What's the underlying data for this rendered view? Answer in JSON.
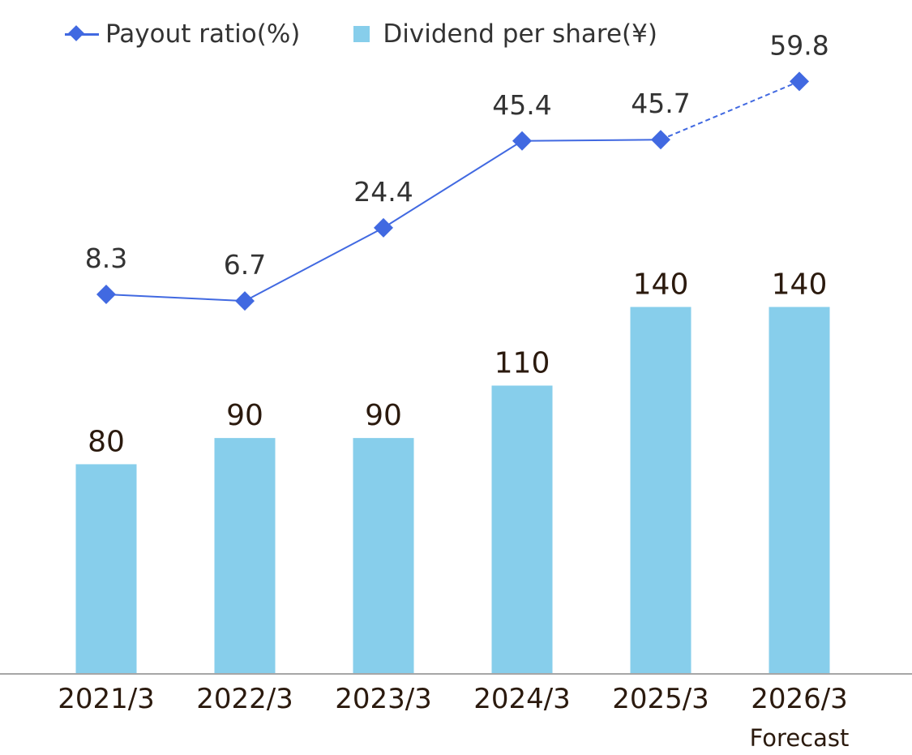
{
  "chart_data": {
    "type": "bar+line",
    "categories": [
      "2021/3",
      "2022/3",
      "2023/3",
      "2024/3",
      "2025/3",
      "2026/3"
    ],
    "category_sublabels": [
      "",
      "",
      "",
      "",
      "",
      "Forecast"
    ],
    "series": [
      {
        "name": "Dividend per share(¥)",
        "type": "bar",
        "values": [
          80,
          90,
          90,
          110,
          140,
          140
        ],
        "color": "#87ceeb",
        "label_color": "#2b1a0e"
      },
      {
        "name": "Payout ratio(%)",
        "type": "line",
        "values": [
          8.3,
          6.7,
          24.4,
          45.4,
          45.7,
          59.8
        ],
        "color": "#4169e1",
        "label_color": "#333333",
        "forecast_from_index": 4
      }
    ],
    "legend_position": "top-left",
    "grid": false,
    "axis_color": "#a6a6a6",
    "tick_label_color": "#2b1a0e"
  }
}
